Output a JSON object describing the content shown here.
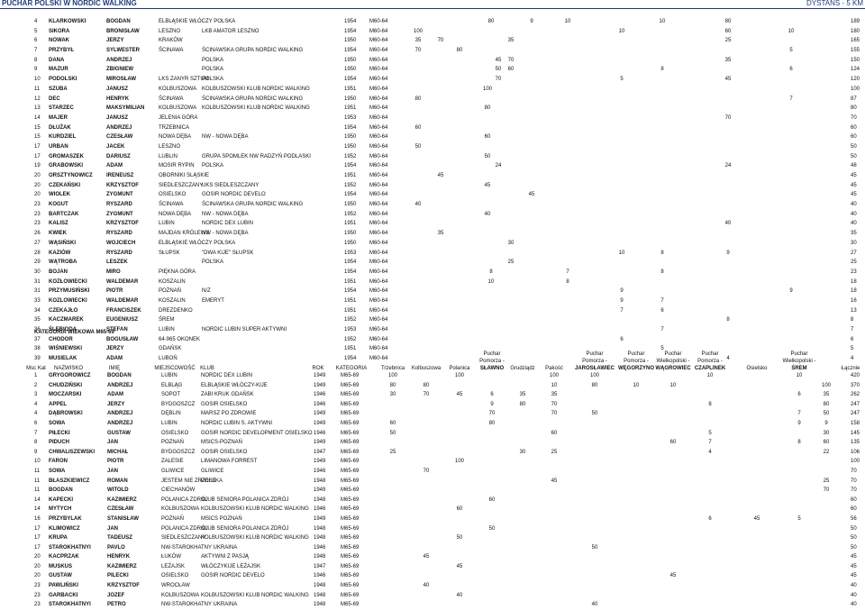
{
  "page": {
    "title": "PUCHAR POLSKI W NORDIC WALKING",
    "distance": "DYSTANS - 5 KM"
  },
  "table1": {
    "rows": [
      {
        "pos": "4",
        "last": "KLARKOWSKI",
        "first": "BOGDAN",
        "city": "ELBLĄSKIE WŁÓCZY POLSKA",
        "club": "",
        "year": "1954",
        "cat": "M60-64",
        "pts": {
          "c8": "80",
          "c9": "9",
          "c10": "10",
          "c12": "10",
          "c13": "80"
        },
        "total": "189"
      },
      {
        "pos": "5",
        "last": "SIKORA",
        "first": "BRONISŁAW",
        "city": "LESZNO",
        "club": "LKB AMATOR LESZNO",
        "year": "1954",
        "cat": "M60-64",
        "pts": {
          "c1": "100",
          "c11": "10",
          "c13": "60",
          "c14": "10"
        },
        "total": "180"
      },
      {
        "pos": "6",
        "last": "NOWAK",
        "first": "JERZY",
        "city": "KRAKÓW",
        "club": "",
        "year": "1950",
        "cat": "M60-64",
        "pts": {
          "c1": "35",
          "c2": "70",
          "c7": "35",
          "c13": "25"
        },
        "total": "165"
      },
      {
        "pos": "7",
        "last": "PRZYBYŁ",
        "first": "SYLWESTER",
        "city": "ŚCINAWA",
        "club": "ŚCINAWSKA GRUPA NORDIC WALKING",
        "year": "1954",
        "cat": "M60-64",
        "pts": {
          "c1": "70",
          "c5": "80",
          "c14": "5"
        },
        "total": "155"
      },
      {
        "pos": "8",
        "last": "DANA",
        "first": "ANDRZEJ",
        "city": "",
        "club": "POLSKA",
        "year": "1950",
        "cat": "M60-64",
        "pts": {
          "c6": "45",
          "c7": "70",
          "c13": "35"
        },
        "total": "150"
      },
      {
        "pos": "9",
        "last": "MAZUR",
        "first": "ZBIGNIEW",
        "city": "",
        "club": "POLSKA",
        "year": "1950",
        "cat": "M60-64",
        "pts": {
          "c6": "50",
          "c7": "60",
          "c12": "8",
          "c14": "6"
        },
        "total": "124"
      },
      {
        "pos": "10",
        "last": "PODOLSKI",
        "first": "MIROSŁAW",
        "city": "LKS ZANYR SZTUM",
        "club": "POLSKA",
        "year": "1954",
        "cat": "M60-64",
        "pts": {
          "c6": "70",
          "c11": "5",
          "c13": "45"
        },
        "total": "120"
      },
      {
        "pos": "11",
        "last": "SZUBA",
        "first": "JANUSZ",
        "city": "KOLBUSZOWA",
        "club": "KOLBUSZOWSKI KLUB NORDIC WALKING",
        "year": "1951",
        "cat": "M60-64",
        "pts": {
          "c4": "100"
        },
        "total": "100"
      },
      {
        "pos": "12",
        "last": "DEC",
        "first": "HENRYK",
        "city": "ŚCINAWA",
        "club": "ŚCINAWSKA GRUPA NORDIC WALKING",
        "year": "1950",
        "cat": "M60-64",
        "pts": {
          "c1": "80",
          "c14": "7"
        },
        "total": "87"
      },
      {
        "pos": "13",
        "last": "STARZEC",
        "first": "MAKSYMILIAN",
        "city": "KOLBUSZOWA",
        "club": "KOLBUSZOWSKI KLUB NORDIC WALKING",
        "year": "1951",
        "cat": "M60-64",
        "pts": {
          "c4": "80"
        },
        "total": "80"
      },
      {
        "pos": "14",
        "last": "MAJER",
        "first": "JANUSZ",
        "city": "JELENIA GÓRA",
        "club": "",
        "year": "1953",
        "cat": "M60-64",
        "pts": {
          "c13": "70"
        },
        "total": "70"
      },
      {
        "pos": "15",
        "last": "DŁUŻAK",
        "first": "ANDRZEJ",
        "city": "TRZEBNICA",
        "club": "",
        "year": "1954",
        "cat": "M60-64",
        "pts": {
          "c1": "60"
        },
        "total": "60"
      },
      {
        "pos": "15",
        "last": "KURDZIEL",
        "first": "CZESŁAW",
        "city": "NOWA DĘBA",
        "club": "NW - NOWA DĘBA",
        "year": "1950",
        "cat": "M60-64",
        "pts": {
          "c4": "60"
        },
        "total": "60"
      },
      {
        "pos": "17",
        "last": "URBAN",
        "first": "JACEK",
        "city": "LESZNO",
        "club": "",
        "year": "1950",
        "cat": "M60-64",
        "pts": {
          "c1": "50"
        },
        "total": "50"
      },
      {
        "pos": "17",
        "last": "GROMASZEK",
        "first": "DARIUSZ",
        "city": "LUBLIN",
        "club": "GRUPA SPOMLEK NW RADZYŃ PODLASKI",
        "year": "1952",
        "cat": "M60-64",
        "pts": {
          "c4": "50"
        },
        "total": "50"
      },
      {
        "pos": "19",
        "last": "GRABOWSKI",
        "first": "ADAM",
        "city": "MOSIR RYPIN",
        "club": "POLSKA",
        "year": "1954",
        "cat": "M60-64",
        "pts": {
          "c6": "24",
          "c13": "24"
        },
        "total": "48"
      },
      {
        "pos": "20",
        "last": "ORSZTYNOWICZ",
        "first": "IRENEUSZ",
        "city": "OBORNIKI SLĄSKIE",
        "club": "",
        "year": "1951",
        "cat": "M60-64",
        "pts": {
          "c2": "45"
        },
        "total": "45"
      },
      {
        "pos": "20",
        "last": "CZEKAŃSKI",
        "first": "KRZYSZTOF",
        "city": "SIEDLESZCZANY",
        "club": "UKS SIEDLESZCZANY",
        "year": "1952",
        "cat": "M60-64",
        "pts": {
          "c4": "45"
        },
        "total": "45"
      },
      {
        "pos": "20",
        "last": "WIOLEK",
        "first": "ZYGMUNT",
        "city": "OSIELSKO",
        "club": "GOSIR NORDIC DEVELO",
        "year": "1954",
        "cat": "M60-64",
        "pts": {
          "c9": "45"
        },
        "total": "45"
      },
      {
        "pos": "23",
        "last": "KOGUT",
        "first": "RYSZARD",
        "city": "ŚCINAWA",
        "club": "ŚCINAWSKA GRUPA NORDIC WALKING",
        "year": "1950",
        "cat": "M60-64",
        "pts": {
          "c1": "40"
        },
        "total": "40"
      },
      {
        "pos": "23",
        "last": "BARTCZAK",
        "first": "ZYGMUNT",
        "city": "NOWA DĘBA",
        "club": "NW - NOWA DĘBA",
        "year": "1952",
        "cat": "M60-64",
        "pts": {
          "c4": "40"
        },
        "total": "40"
      },
      {
        "pos": "23",
        "last": "KALISZ",
        "first": "KRZYSZTOF",
        "city": "LUBIN",
        "club": "NORDIC DEX LUBIN",
        "year": "1951",
        "cat": "M60-64",
        "pts": {
          "c13": "40"
        },
        "total": "40"
      },
      {
        "pos": "26",
        "last": "KWIEK",
        "first": "RYSZARD",
        "city": "MAJDAN KRÓLEWS",
        "club": "NW - NOWA DĘBA",
        "year": "1950",
        "cat": "M60-64",
        "pts": {
          "c2": "35"
        },
        "total": "35"
      },
      {
        "pos": "27",
        "last": "WĄSIŃSKI",
        "first": "WOJCIECH",
        "city": "ELBLĄSKIE WŁÓCZY POLSKA",
        "club": "",
        "year": "1950",
        "cat": "M60-64",
        "pts": {
          "c7": "30"
        },
        "total": "30"
      },
      {
        "pos": "28",
        "last": "KAZIÓW",
        "first": "RYSZARD",
        "city": "SŁUPSK",
        "club": "\"DWA KIJE\" SŁUPSK",
        "year": "1953",
        "cat": "M60-64",
        "pts": {
          "c11": "10",
          "c12": "8",
          "c13": "9"
        },
        "total": "27"
      },
      {
        "pos": "29",
        "last": "WĄTROBA",
        "first": "LESZEK",
        "city": "",
        "club": "POLSKA",
        "year": "1954",
        "cat": "M60-64",
        "pts": {
          "c7": "25"
        },
        "total": "25"
      },
      {
        "pos": "30",
        "last": "BOJAN",
        "first": "MIRO",
        "city": "PIĘKNA GÓRA",
        "club": "",
        "year": "1954",
        "cat": "M60-64",
        "pts": {
          "c8": "8",
          "c10": "7",
          "c12": "8"
        },
        "total": "23"
      },
      {
        "pos": "31",
        "last": "KOZŁOWIECKI",
        "first": "WALDEMAR",
        "city": "KOSZALIN",
        "club": "",
        "year": "1951",
        "cat": "M60-64",
        "pts": {
          "c8": "10",
          "c10": "8"
        },
        "total": "18"
      },
      {
        "pos": "31",
        "last": "PRZYMUSIŃSKI",
        "first": "PIOTR",
        "city": "POZNAŃ",
        "club": "N/Z",
        "year": "1954",
        "cat": "M60-64",
        "pts": {
          "c11": "9",
          "c14": "9"
        },
        "total": "18"
      },
      {
        "pos": "33",
        "last": "KOZLOWIECKI",
        "first": "WALDEMAR",
        "city": "KOSZALIN",
        "club": "EMERYT",
        "year": "1951",
        "cat": "M60-64",
        "pts": {
          "c11": "9",
          "c12": "7"
        },
        "total": "16"
      },
      {
        "pos": "34",
        "last": "CZEKAJŁO",
        "first": "FRANCISZEK",
        "city": "DREZDENKO",
        "club": "",
        "year": "1951",
        "cat": "M60-64",
        "pts": {
          "c11": "7",
          "c12": "6"
        },
        "total": "13"
      },
      {
        "pos": "35",
        "last": "KACZMAREK",
        "first": "EUGENIUSZ",
        "city": "ŚREM",
        "club": "",
        "year": "1952",
        "cat": "M60-64",
        "pts": {
          "c13": "8"
        },
        "total": "8"
      },
      {
        "pos": "36",
        "last": "ŚLEBIODA",
        "first": "STEFAN",
        "city": "LUBIN",
        "club": "NORDIC LUBIN SUPER AKTYWNI",
        "year": "1953",
        "cat": "M60-64",
        "pts": {
          "c12": "7"
        },
        "total": "7"
      },
      {
        "pos": "37",
        "last": "CHODOR",
        "first": "BOGUSŁAW",
        "city": "64-965 OKONEK",
        "club": "",
        "year": "1952",
        "cat": "M60-64",
        "pts": {
          "c11": "6"
        },
        "total": "6"
      },
      {
        "pos": "38",
        "last": "WIŚNIEWSKI",
        "first": "JERZY",
        "city": "GDAŃSK",
        "club": "",
        "year": "1951",
        "cat": "M60-64",
        "pts": {
          "c12": "5"
        },
        "total": "5"
      },
      {
        "pos": "39",
        "last": "MUSIELAK",
        "first": "ADAM",
        "city": "LUBOŃ",
        "club": "",
        "year": "1954",
        "cat": "M60-64",
        "pts": {
          "c13": "4"
        },
        "total": "4"
      }
    ]
  },
  "category2": {
    "heading": "KATEGORIA WIEKOWA M65-69",
    "headers": {
      "msc": "Msc Kat",
      "nazwisko": "NAZWISKO",
      "imie": "IMIĘ",
      "miejscowosc": "MIEJSCOWOŚĆ",
      "klub": "KLUB",
      "rok": "ROK",
      "kategoria": "KATEGORIA",
      "trzebnica": "Trzebnica",
      "kolbuszowa": "Kolbuszowa",
      "polanica": "Polanica",
      "pomorza1": [
        "Puchar",
        "Pomorza -",
        "SŁAWNO"
      ],
      "grudziadz": "Grudziądz",
      "pakosc": "Pakość",
      "pomorza2": [
        "Puchar",
        "Pomorza -",
        "JAROSŁAWIEC"
      ],
      "pomorza3": [
        "Puchar",
        "Pomorza -",
        "WĘGORZYNO"
      ],
      "wlkp1": [
        "Puchar",
        "Wielkopolski -",
        "WĄGROWIEC"
      ],
      "pomorza4": [
        "Puchar",
        "Pomorza -",
        "CZAPLINEK"
      ],
      "osielsko": "Osielsko",
      "wlkp2": [
        "Puchar",
        "Wielkopolski -",
        "ŚREM"
      ],
      "lacznie": "Łącznie"
    },
    "rows": [
      {
        "pos": "1",
        "last": "GRYGOROWICZ",
        "first": "BOGDAN",
        "city": "LUBIN",
        "club": "NORDIC DEX LUBIN",
        "year": "1949",
        "cat": "M65-69",
        "pts": {
          "c1": "100",
          "c3": "100",
          "c6": "100",
          "c7": "100",
          "c10": "10",
          "c14": "10"
        },
        "total": "420"
      },
      {
        "pos": "2",
        "last": "CHUDZIŃSKI",
        "first": "ANDRZEJ",
        "city": "ELBLĄG",
        "club": "ELBLĄSKIE WŁÓCZY-KIJE",
        "year": "1949",
        "cat": "M65-69",
        "pts": {
          "c1": "80",
          "c2": "80",
          "c6": "10",
          "c7": "80",
          "c8": "10",
          "c9": "10",
          "c13": "100"
        },
        "total": "370"
      },
      {
        "pos": "3",
        "last": "MOCZARSKI",
        "first": "ADAM",
        "city": "SOPOT",
        "club": "ZABI KRUK GDAŃSK",
        "year": "1946",
        "cat": "M65-69",
        "pts": {
          "c1": "30",
          "c2": "70",
          "c3": "45",
          "c4": "6",
          "c5": "35",
          "c6": "35",
          "c13": "35",
          "c14": "6"
        },
        "total": "262"
      },
      {
        "pos": "4",
        "last": "APPEL",
        "first": "JERZY",
        "city": "BYDGOSZCZ",
        "club": "GOSIR OSIELSKO",
        "year": "1946",
        "cat": "M65-69",
        "pts": {
          "c4": "9",
          "c5": "80",
          "c6": "70",
          "c10": "8",
          "c13": "80"
        },
        "total": "247"
      },
      {
        "pos": "4",
        "last": "DĄBROWSKI",
        "first": "ANDRZEJ",
        "city": "DĘBLIN",
        "club": "MARSZ PO ZDROWIE",
        "year": "1949",
        "cat": "M65-69",
        "pts": {
          "c4": "70",
          "c6": "70",
          "c7": "50",
          "c13": "50",
          "c14": "7"
        },
        "total": "247"
      },
      {
        "pos": "6",
        "last": "SOWA",
        "first": "ANDRZEJ",
        "city": "LUBIN",
        "club": "NORDIC LUBIN S. AKTYWNI",
        "year": "1949",
        "cat": "M65-69",
        "pts": {
          "c1": "60",
          "c4": "80",
          "c13": "9",
          "c14": "9"
        },
        "total": "158"
      },
      {
        "pos": "7",
        "last": "PIŁECKI",
        "first": "GUSTAW",
        "city": "OSIELSKO",
        "club": "GOSIR NORDIC DEVELOPMENT OSIELSKO",
        "year": "1946",
        "cat": "M65-69",
        "pts": {
          "c1": "50",
          "c6": "60",
          "c10": "5",
          "c13": "30"
        },
        "total": "145"
      },
      {
        "pos": "8",
        "last": "PIDUCH",
        "first": "JAN",
        "city": "POZNAŃ",
        "club": "MSICS-POZNAŃ",
        "year": "1949",
        "cat": "M65-69",
        "pts": {
          "c9": "60",
          "c10": "7",
          "c13": "60",
          "c14": "8"
        },
        "total": "135"
      },
      {
        "pos": "9",
        "last": "CHWALISZEWSKI",
        "first": "MICHAŁ",
        "city": "BYDGOSZCZ",
        "club": "GOSIR OSIELSKO",
        "year": "1947",
        "cat": "M65-69",
        "pts": {
          "c1": "25",
          "c5": "30",
          "c6": "25",
          "c10": "4",
          "c13": "22"
        },
        "total": "106"
      },
      {
        "pos": "10",
        "last": "FARON",
        "first": "PIOTR",
        "city": "ZALESIE",
        "club": "LIMANOWA FORREST",
        "year": "1949",
        "cat": "M65-69",
        "pts": {
          "c3": "100"
        },
        "total": "100"
      },
      {
        "pos": "11",
        "last": "SOWA",
        "first": "JAN",
        "city": "GLIWICE",
        "club": "GLIWICE",
        "year": "1946",
        "cat": "M65-69",
        "pts": {
          "c2": "70"
        },
        "total": "70"
      },
      {
        "pos": "11",
        "last": "BŁASZKIEWICZ",
        "first": "ROMAN",
        "city": "JESTEM NIE ZRZESZ",
        "club": "POLSKA",
        "year": "1948",
        "cat": "M65-69",
        "pts": {
          "c6": "45",
          "c13": "25"
        },
        "total": "70"
      },
      {
        "pos": "11",
        "last": "BOGDAN",
        "first": "WITOLD",
        "city": "CIECHANÓW",
        "club": "",
        "year": "1949",
        "cat": "M65-69",
        "pts": {
          "c13": "70"
        },
        "total": "70"
      },
      {
        "pos": "14",
        "last": "KAPECKI",
        "first": "KAZIMIERZ",
        "city": "POLANICA ZDRÓJ",
        "club": "KLUB SENIORA POLANICA ZDRÓJ",
        "year": "1948",
        "cat": "M65-69",
        "pts": {
          "c4": "60"
        },
        "total": "60"
      },
      {
        "pos": "14",
        "last": "MYTYCH",
        "first": "CZESŁAW",
        "city": "KOLBUSZOWA",
        "club": "KOLBUSZOWSKI KLUB NORDIC WALKING",
        "year": "1946",
        "cat": "M65-69",
        "pts": {
          "c3": "60"
        },
        "total": "60"
      },
      {
        "pos": "16",
        "last": "PRZYBYLAK",
        "first": "STANISŁAW",
        "city": "POZNAŃ",
        "club": "MSICS POZNAŃ",
        "year": "1949",
        "cat": "M65-69",
        "pts": {
          "c10": "6",
          "c11": "45",
          "c12": "5"
        },
        "total": "56"
      },
      {
        "pos": "17",
        "last": "KLIMOWICZ",
        "first": "JAN",
        "city": "POLANICA ZDRÓJ",
        "club": "KLUB SENIORA POLANICA ZDRÓJ",
        "year": "1948",
        "cat": "M65-69",
        "pts": {
          "c4": "50"
        },
        "total": "50"
      },
      {
        "pos": "17",
        "last": "KRUPA",
        "first": "TADEUSZ",
        "club": "KOLBUSZOWSKI KLUB NORDIC WALKING",
        "city": "SIEDLESZCZANY",
        "year": "1948",
        "cat": "M65-69",
        "pts": {
          "c3": "50"
        },
        "total": "50"
      },
      {
        "pos": "17",
        "last": "STAROKHATNYI",
        "first": "PAVLO",
        "city": "NW-STAROKHATNY UKRAINA",
        "club": "",
        "year": "1946",
        "cat": "M65-69",
        "pts": {
          "c7": "50"
        },
        "total": "50"
      },
      {
        "pos": "20",
        "last": "KACPRZAK",
        "first": "HENRYK",
        "city": "ŁUKÓW",
        "club": "AKTYWNI Z PASJĄ",
        "year": "1948",
        "cat": "M65-69",
        "pts": {
          "c2": "45"
        },
        "total": "45"
      },
      {
        "pos": "20",
        "last": "MUSKUS",
        "first": "KAZIMIERZ",
        "city": "LEŻAJSK",
        "club": "WŁÓCZYKIJE LEŻAJSK",
        "year": "1947",
        "cat": "M65-69",
        "pts": {
          "c3": "45"
        },
        "total": "45"
      },
      {
        "pos": "20",
        "last": "GUSTAW",
        "first": "PILECKI",
        "city": "OSIELSKO",
        "club": "GOSIR NORDIC DEVELO",
        "year": "1946",
        "cat": "M65-69",
        "pts": {
          "c9": "45"
        },
        "total": "45"
      },
      {
        "pos": "23",
        "last": "PAWLIŃSKI",
        "first": "KRZYSZTOF",
        "city": "WROCŁAW",
        "club": "",
        "year": "1948",
        "cat": "M65-69",
        "pts": {
          "c2": "40"
        },
        "total": "40"
      },
      {
        "pos": "23",
        "last": "GARBACKI",
        "first": "JOZEF",
        "city": "KOLBUSZOWA",
        "club": "KOLBUSZOWSKI KLUB NORDIC WALKING",
        "year": "1948",
        "cat": "M65-69",
        "pts": {
          "c3": "40"
        },
        "total": "40"
      },
      {
        "pos": "23",
        "last": "STAROKHATNYI",
        "first": "PETRO",
        "city": "NW-STAROKHATNY UKRAINA",
        "club": "",
        "year": "1948",
        "cat": "M65-69",
        "pts": {
          "c7": "40"
        },
        "total": "40"
      }
    ]
  }
}
